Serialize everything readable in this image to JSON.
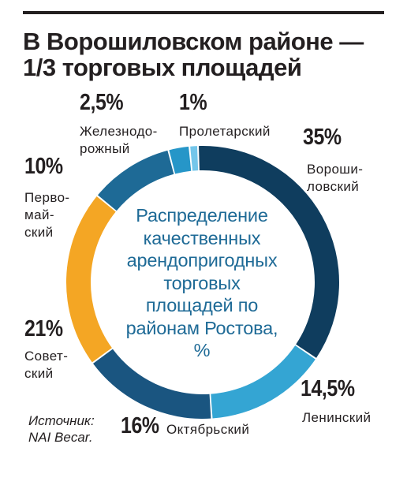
{
  "title_lines": [
    "В Ворошиловском районе —",
    "1/3 торговых площадей"
  ],
  "center_lines": [
    "Распределение",
    "качественных",
    "арендопригодных",
    "торговых",
    "площадей по",
    "районам Ростова,",
    "%"
  ],
  "source_lines": [
    "Источник:",
    "NAI Becar."
  ],
  "colors": {
    "voroshilovsky": "#0f3d5e",
    "leninsky": "#34a5d3",
    "oktyabrsky": "#1a5580",
    "sovetsky": "#f4a624",
    "pervomaysky": "#1e6a96",
    "zheleznodorozhny": "#2696c8",
    "proletarsky": "#74c6ea",
    "center_text": "#1e6a96"
  },
  "chart_data": {
    "type": "pie",
    "style": "donut",
    "unit": "%",
    "slices": [
      {
        "label": "Ворошиловский",
        "label_lines": [
          "Вороши-",
          "ловский"
        ],
        "value": 35,
        "value_label": "35%",
        "color": "#0f3d5e"
      },
      {
        "label": "Ленинский",
        "label_lines": [
          "Ленинский"
        ],
        "value": 14.5,
        "value_label": "14,5%",
        "color": "#34a5d3"
      },
      {
        "label": "Октябрьский",
        "label_lines": [
          "Октябрьский"
        ],
        "value": 16,
        "value_label": "16%",
        "color": "#1a5580"
      },
      {
        "label": "Советский",
        "label_lines": [
          "Совет-",
          "ский"
        ],
        "value": 21,
        "value_label": "21%",
        "color": "#f4a624"
      },
      {
        "label": "Первомайский",
        "label_lines": [
          "Перво-",
          "май-",
          "ский"
        ],
        "value": 10,
        "value_label": "10%",
        "color": "#1e6a96"
      },
      {
        "label": "Железнодорожный",
        "label_lines": [
          "Железнодо-",
          "рожный"
        ],
        "value": 2.5,
        "value_label": "2,5%",
        "color": "#2696c8"
      },
      {
        "label": "Пролетарский",
        "label_lines": [
          "Пролетарский"
        ],
        "value": 1,
        "value_label": "1%",
        "color": "#74c6ea"
      }
    ]
  }
}
